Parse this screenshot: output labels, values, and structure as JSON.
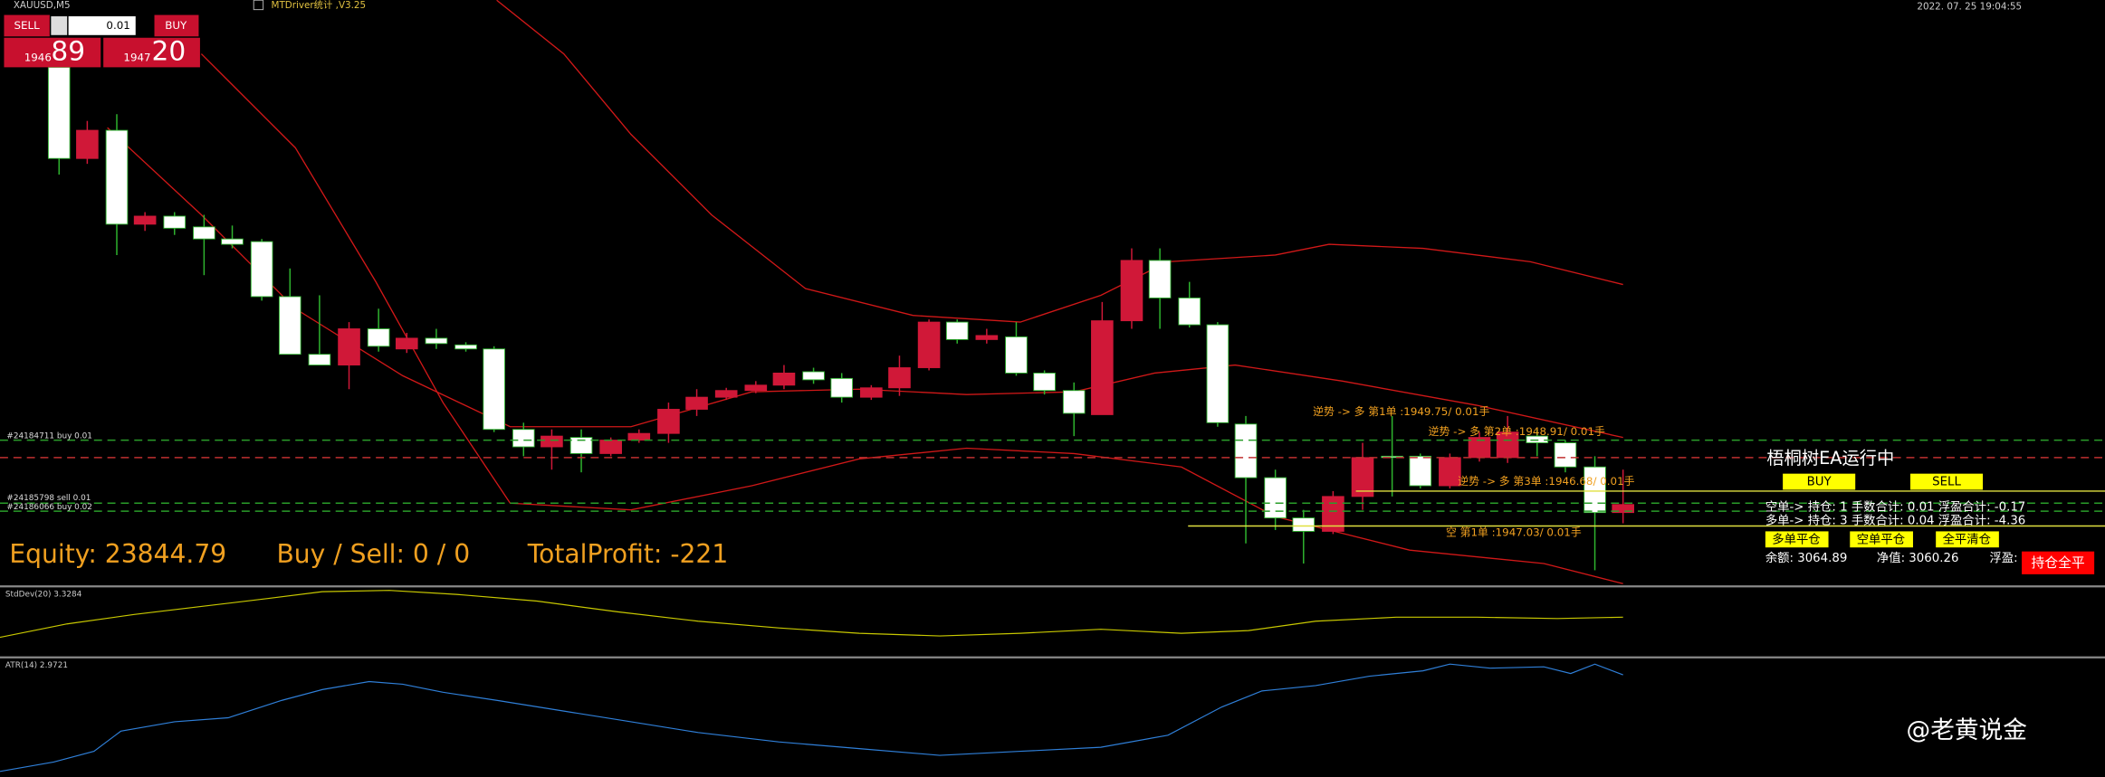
{
  "header": {
    "symbol": "XAUUSD,M5",
    "indicator": "MTDriver统计 ,V3.25",
    "datetime": "2022. 07. 25  19:04:55"
  },
  "trade_panel": {
    "sell": "SELL",
    "lot": "0.01",
    "buy": "BUY",
    "bid_big": "1946",
    "bid_small": "89",
    "ask_big": "1947",
    "ask_small": "20"
  },
  "stats": {
    "equity": "Equity: 23844.79",
    "buy_sell": "Buy / Sell: 0 / 0",
    "total_profit": "TotalProfit: -221"
  },
  "order_lines": [
    "#24184711 buy 0.01",
    "#24185798 sell 0.01",
    "#24186066 buy 0.02"
  ],
  "annotations": [
    "逆势 -> 多 第1单 :1949.75/ 0.01手",
    "逆势 -> 多 第2单 :1948.91/ 0.01手",
    "逆势 -> 多 第3单 :1946.68/ 0.01手",
    "空 第1单 :1947.03/ 0.01手"
  ],
  "ea_panel": {
    "title": "梧桐树EA运行中",
    "buy": "BUY",
    "sell": "SELL",
    "short_line": "空单-> 持仓: 1  手数合计: 0.01  浮盈合计: -0.17",
    "long_line": "多单-> 持仓: 3  手数合计: 0.04  浮盈合计: -4.36",
    "close_long": "多单平仓",
    "close_short": "空单平仓",
    "close_all": "全平清仓",
    "balance": "余额: 3064.89",
    "equity": "净值: 3060.26",
    "profit": "浮盈:",
    "close_positions": "持仓全平"
  },
  "indicators": {
    "stddev": "StdDev(20) 3.3284",
    "atr": "ATR(14) 2.9721"
  },
  "watermark": "@老黄说金"
}
